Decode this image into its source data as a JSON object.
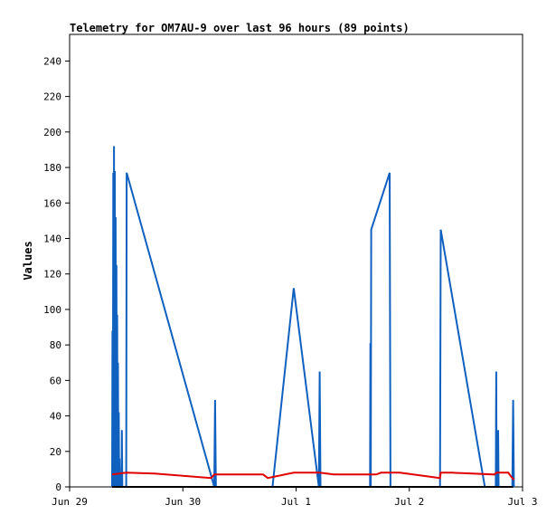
{
  "chart_data": {
    "type": "line",
    "title": "Telemetry for OM7AU-9 over last 96 hours (89 points)",
    "xlabel": "",
    "ylabel": "Values",
    "xlim": [
      "2024-06-29T00:00",
      "2024-07-03T00:00"
    ],
    "ylim": [
      0,
      255
    ],
    "x_tick_labels": [
      "Jun 29",
      "Jun 30",
      "Jul 1",
      "Jul 2",
      "Jul 3"
    ],
    "y_ticks": [
      0,
      20,
      40,
      60,
      80,
      100,
      120,
      140,
      160,
      180,
      200,
      220,
      240
    ],
    "grid": false,
    "legend": "none",
    "series": [
      {
        "color": "#1060c0",
        "points": [
          [
            "2024-06-29T09:00",
            0
          ],
          [
            "2024-06-29T09:05",
            88
          ],
          [
            "2024-06-29T09:10",
            0
          ],
          [
            "2024-06-29T09:15",
            177
          ],
          [
            "2024-06-29T09:20",
            0
          ],
          [
            "2024-06-29T09:25",
            192
          ],
          [
            "2024-06-29T09:30",
            0
          ],
          [
            "2024-06-29T09:35",
            178
          ],
          [
            "2024-06-29T09:40",
            0
          ],
          [
            "2024-06-29T09:45",
            152
          ],
          [
            "2024-06-29T09:50",
            0
          ],
          [
            "2024-06-29T09:55",
            125
          ],
          [
            "2024-06-29T10:00",
            0
          ],
          [
            "2024-06-29T10:05",
            97
          ],
          [
            "2024-06-29T10:10",
            0
          ],
          [
            "2024-06-29T10:15",
            70
          ],
          [
            "2024-06-29T10:20",
            0
          ],
          [
            "2024-06-29T10:25",
            42
          ],
          [
            "2024-06-29T10:30",
            0
          ],
          [
            "2024-06-29T10:35",
            16
          ],
          [
            "2024-06-29T10:40",
            0
          ],
          [
            "2024-06-29T11:00",
            0
          ],
          [
            "2024-06-29T11:05",
            32
          ],
          [
            "2024-06-29T11:10",
            0
          ],
          [
            "2024-06-29T12:00",
            0
          ],
          [
            "2024-06-29T12:05",
            177
          ],
          [
            "2024-06-30T06:40",
            0
          ],
          [
            "2024-06-30T06:50",
            49
          ],
          [
            "2024-06-30T07:00",
            0
          ],
          [
            "2024-06-30T19:00",
            0
          ],
          [
            "2024-06-30T23:30",
            112
          ],
          [
            "2024-07-01T04:50",
            0
          ],
          [
            "2024-07-01T05:00",
            65
          ],
          [
            "2024-07-01T05:10",
            0
          ],
          [
            "2024-07-01T15:40",
            0
          ],
          [
            "2024-07-01T15:45",
            81
          ],
          [
            "2024-07-01T15:50",
            0
          ],
          [
            "2024-07-01T15:55",
            145
          ],
          [
            "2024-07-01T19:50",
            177
          ],
          [
            "2024-07-01T20:00",
            0
          ],
          [
            "2024-07-02T06:30",
            0
          ],
          [
            "2024-07-02T06:40",
            145
          ],
          [
            "2024-07-02T16:00",
            0
          ],
          [
            "2024-07-02T18:20",
            0
          ],
          [
            "2024-07-02T18:25",
            65
          ],
          [
            "2024-07-02T18:30",
            0
          ],
          [
            "2024-07-02T18:45",
            0
          ],
          [
            "2024-07-02T18:50",
            32
          ],
          [
            "2024-07-02T18:55",
            0
          ],
          [
            "2024-07-02T21:50",
            0
          ],
          [
            "2024-07-02T22:00",
            49
          ],
          [
            "2024-07-02T22:10",
            0
          ]
        ]
      },
      {
        "color": "#e00000",
        "points": [
          [
            "2024-06-29T09:00",
            7
          ],
          [
            "2024-06-29T12:00",
            8
          ],
          [
            "2024-06-29T18:00",
            7.5
          ],
          [
            "2024-06-30T06:00",
            5
          ],
          [
            "2024-06-30T06:40",
            7
          ],
          [
            "2024-06-30T17:00",
            7
          ],
          [
            "2024-06-30T18:00",
            5
          ],
          [
            "2024-06-30T23:30",
            8
          ],
          [
            "2024-07-01T05:00",
            8
          ],
          [
            "2024-07-01T08:00",
            7
          ],
          [
            "2024-07-01T17:00",
            7
          ],
          [
            "2024-07-01T18:00",
            8
          ],
          [
            "2024-07-01T22:00",
            8
          ],
          [
            "2024-07-02T06:30",
            5
          ],
          [
            "2024-07-02T06:40",
            8
          ],
          [
            "2024-07-02T09:00",
            8
          ],
          [
            "2024-07-02T18:00",
            7
          ],
          [
            "2024-07-02T18:30",
            8
          ],
          [
            "2024-07-02T21:00",
            8
          ],
          [
            "2024-07-02T21:30",
            6
          ],
          [
            "2024-07-02T22:10",
            4
          ]
        ]
      },
      {
        "color": "#000000",
        "points": [
          [
            "2024-06-29T09:00",
            0
          ],
          [
            "2024-07-02T22:00",
            0
          ]
        ]
      }
    ]
  }
}
